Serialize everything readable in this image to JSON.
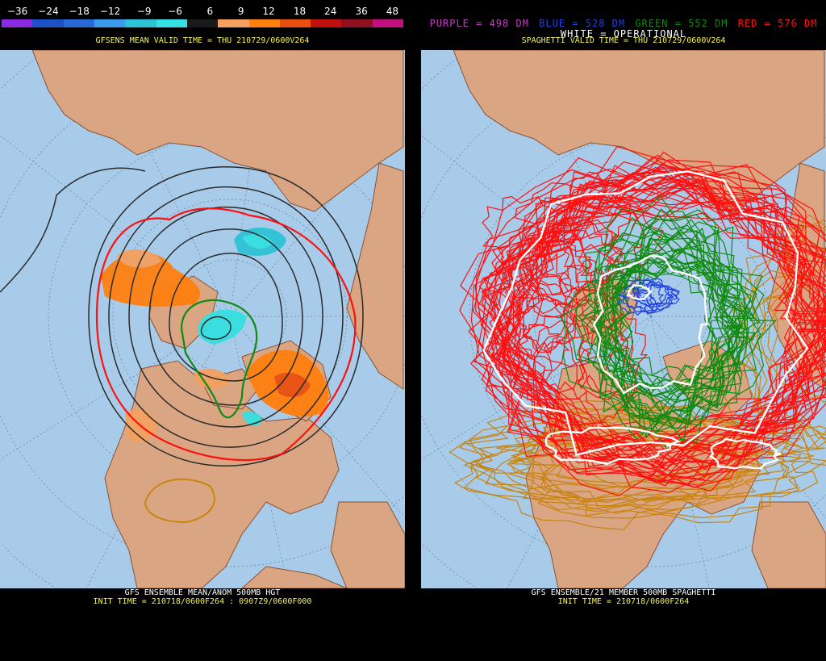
{
  "colorbar": {
    "labels": [
      "−36",
      "−24",
      "−18",
      "−12",
      "−9",
      "−6",
      "6",
      "9",
      "12",
      "18",
      "24",
      "36",
      "48"
    ],
    "colors": [
      "#8a2be2",
      "#1e50c8",
      "#2a6ad8",
      "#3c9be8",
      "#2ec2d6",
      "#36e0e0",
      "#1a1a1a",
      "#f4a060",
      "#ff8010",
      "#e85010",
      "#c01010",
      "#901020",
      "#c01080"
    ]
  },
  "left": {
    "subtitle": "GFSENS MEAN VALID TIME = THU 210729/0600V264",
    "footer_line1": "GFS ENSEMBLE MEAN/ANOM 500MB HGT",
    "footer_line2": "INIT TIME = 210718/0600F264 : 0907Z9/0600F000"
  },
  "right": {
    "legend": {
      "purple": "PURPLE = 498 DM",
      "blue": "BLUE = 528 DM",
      "green": "GREEN = 552 DM",
      "red": "RED = 576 DM",
      "white": "WHITE = OPERATIONAL"
    },
    "subtitle": "SPAGHETTI VALID TIME = THU 210729/0600V264",
    "footer_line1": "GFS ENSEMBLE/21 MEMBER 500MB SPAGHETTI",
    "footer_line2": "INIT TIME = 210718/0600F264"
  },
  "colors": {
    "ocean": "#a8cbe9",
    "land": "#d9a583",
    "border": "#8a5232",
    "purple": "#c040c0",
    "blue": "#2040e0",
    "green": "#108a10",
    "red": "#ff1010",
    "orange": "#c98410",
    "white": "#ffffff"
  }
}
